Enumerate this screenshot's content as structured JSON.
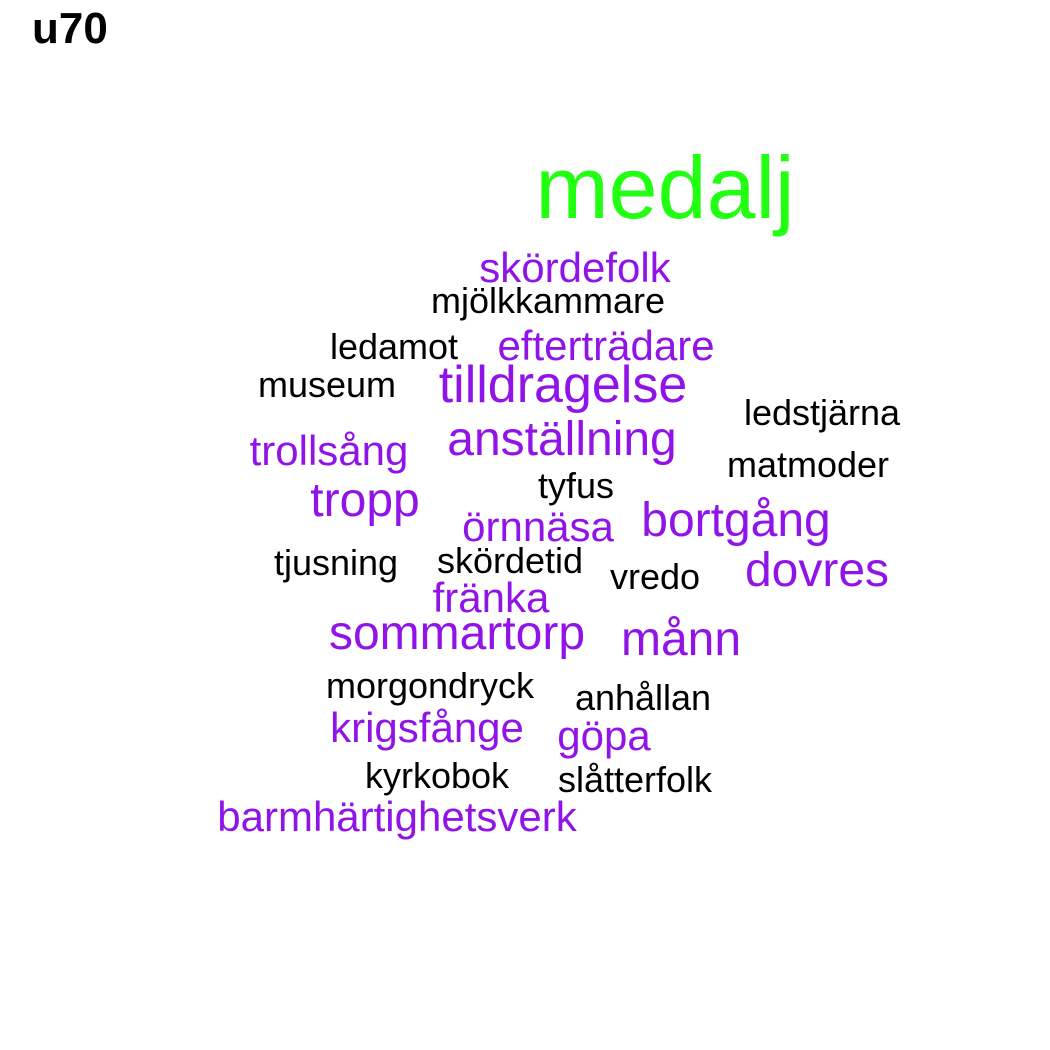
{
  "title": "u70",
  "colors": {
    "top": "#22ff12",
    "high": "#9013e8",
    "low": "#000000"
  },
  "words": [
    {
      "text": "medalj",
      "tier": "top"
    },
    {
      "text": "skördefolk",
      "tier": "high"
    },
    {
      "text": "mjölkkammare",
      "tier": "low"
    },
    {
      "text": "ledamot",
      "tier": "low"
    },
    {
      "text": "efterträdare",
      "tier": "high"
    },
    {
      "text": "museum",
      "tier": "low"
    },
    {
      "text": "tilldragelse",
      "tier": "high"
    },
    {
      "text": "ledstjärna",
      "tier": "low"
    },
    {
      "text": "trollsång",
      "tier": "high"
    },
    {
      "text": "anställning",
      "tier": "high"
    },
    {
      "text": "matmoder",
      "tier": "low"
    },
    {
      "text": "tyfus",
      "tier": "low"
    },
    {
      "text": "tropp",
      "tier": "high"
    },
    {
      "text": "örnnäsa",
      "tier": "high"
    },
    {
      "text": "bortgång",
      "tier": "high"
    },
    {
      "text": "tjusning",
      "tier": "low"
    },
    {
      "text": "skördetid",
      "tier": "low"
    },
    {
      "text": "vredo",
      "tier": "low"
    },
    {
      "text": "dovres",
      "tier": "high"
    },
    {
      "text": "fränka",
      "tier": "high"
    },
    {
      "text": "sommartorp",
      "tier": "high"
    },
    {
      "text": "månn",
      "tier": "high"
    },
    {
      "text": "morgondryck",
      "tier": "low"
    },
    {
      "text": "anhållan",
      "tier": "low"
    },
    {
      "text": "krigsfånge",
      "tier": "high"
    },
    {
      "text": "göpa",
      "tier": "high"
    },
    {
      "text": "kyrkobok",
      "tier": "low"
    },
    {
      "text": "slåtterfolk",
      "tier": "low"
    },
    {
      "text": "barmhärtighetsverk",
      "tier": "high"
    }
  ]
}
